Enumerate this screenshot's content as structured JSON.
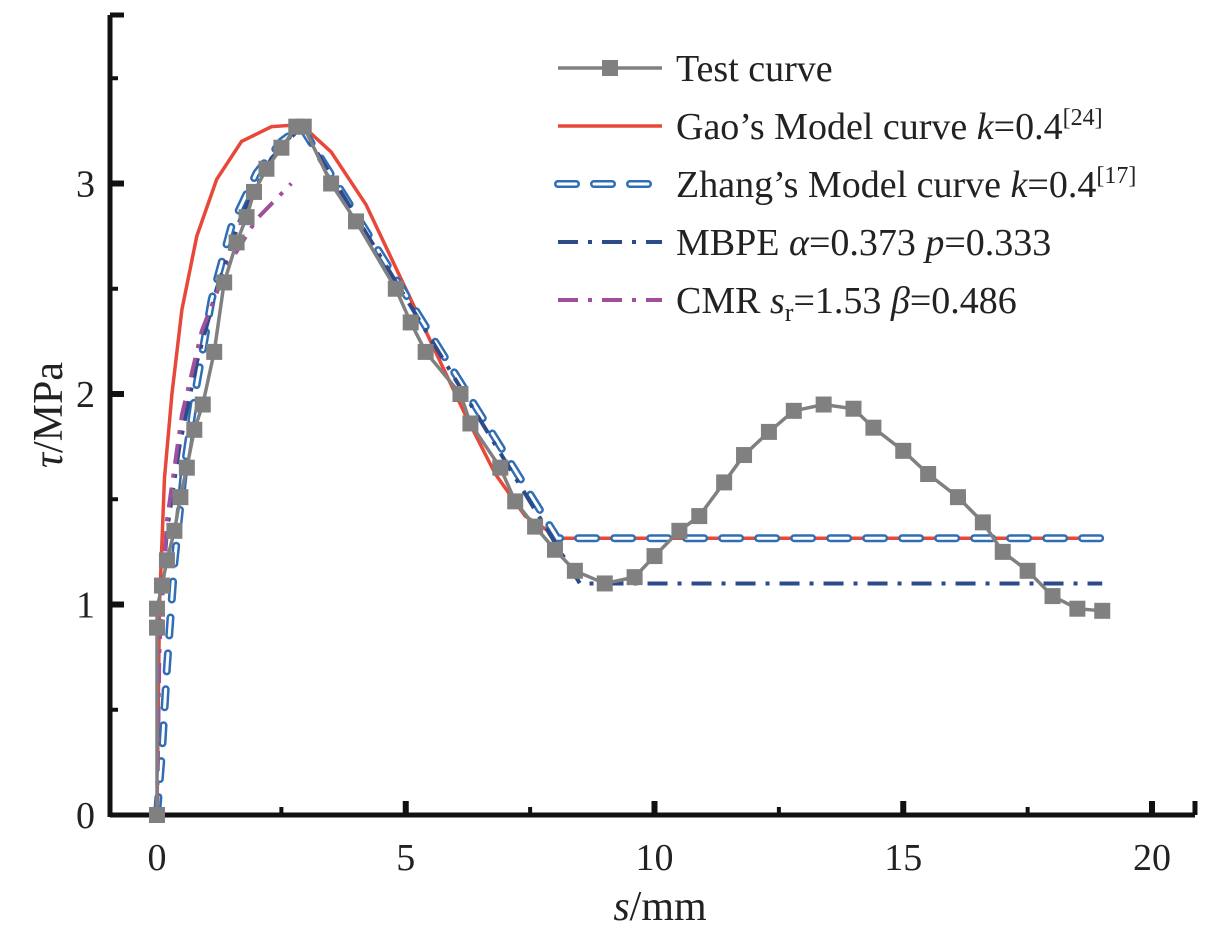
{
  "chart_data": {
    "type": "line",
    "xlabel": {
      "var": "s",
      "unit": "/mm"
    },
    "ylabel": {
      "var": "τ",
      "unit": "/MPa"
    },
    "xlim": [
      -0.95,
      20.9
    ],
    "ylim": [
      0,
      3.8
    ],
    "xticks": [
      "0",
      "5",
      "10",
      "15",
      "20"
    ],
    "xtick_values": [
      0,
      5,
      10,
      15,
      20
    ],
    "yticks": [
      "0",
      "1",
      "2",
      "3"
    ],
    "ytick_values": [
      0,
      1,
      2,
      3
    ],
    "grid": false,
    "legend_position": "top-right",
    "series": [
      {
        "name": "Test curve",
        "legend": [
          {
            "t": "Test curve"
          }
        ],
        "color": "#808080",
        "style": "line-square",
        "x": [
          0,
          0,
          0,
          0.1,
          0.2,
          0.35,
          0.47,
          0.6,
          0.75,
          0.92,
          1.15,
          1.35,
          1.6,
          1.8,
          1.95,
          2.2,
          2.5,
          2.8,
          2.95,
          3.5,
          4.0,
          4.8,
          5.1,
          5.4,
          6.1,
          6.3,
          6.9,
          7.2,
          7.6,
          8.0,
          8.4,
          9.0,
          9.6,
          10.0,
          10.5,
          10.9,
          11.4,
          11.8,
          12.3,
          12.8,
          13.4,
          14.0,
          14.4,
          15.0,
          15.5,
          16.1,
          16.6,
          17.0,
          17.5,
          18.0,
          18.5,
          19.0
        ],
        "y": [
          0,
          0.89,
          0.98,
          1.09,
          1.21,
          1.35,
          1.51,
          1.65,
          1.83,
          1.95,
          2.2,
          2.53,
          2.72,
          2.84,
          2.96,
          3.07,
          3.17,
          3.27,
          3.27,
          3.0,
          2.82,
          2.5,
          2.34,
          2.2,
          2.0,
          1.86,
          1.65,
          1.49,
          1.37,
          1.26,
          1.16,
          1.1,
          1.13,
          1.23,
          1.35,
          1.42,
          1.58,
          1.71,
          1.82,
          1.92,
          1.95,
          1.93,
          1.84,
          1.73,
          1.62,
          1.51,
          1.39,
          1.25,
          1.16,
          1.04,
          0.98,
          0.97
        ]
      },
      {
        "name": "Gao's Model curve k=0.4[24]",
        "legend": [
          {
            "t": "Gao’s Model curve "
          },
          {
            "t": "k",
            "i": true
          },
          {
            "t": "=0.4"
          },
          {
            "t": "[24]",
            "sup": true
          }
        ],
        "color": "#e8483a",
        "style": "solid",
        "x": [
          0,
          0.05,
          0.15,
          0.3,
          0.5,
          0.8,
          1.2,
          1.7,
          2.3,
          2.9,
          3.5,
          4.2,
          5.0,
          5.6,
          6.2,
          6.8,
          7.4,
          8.1,
          19
        ],
        "y": [
          0,
          1.0,
          1.6,
          2.0,
          2.4,
          2.75,
          3.02,
          3.2,
          3.27,
          3.28,
          3.15,
          2.9,
          2.5,
          2.2,
          1.9,
          1.62,
          1.42,
          1.315,
          1.315
        ]
      },
      {
        "name": "Zhang's Model curve k=0.4[17]",
        "legend": [
          {
            "t": "Zhang’s Model curve "
          },
          {
            "t": "k",
            "i": true
          },
          {
            "t": "=0.4"
          },
          {
            "t": "[17]",
            "sup": true
          }
        ],
        "color": "#2f6db5",
        "style": "hollow-dash",
        "x": [
          0,
          0.1,
          0.2,
          0.35,
          0.55,
          0.8,
          1.1,
          1.5,
          2.0,
          2.5,
          2.9,
          8.05,
          19
        ],
        "y": [
          0,
          0.3,
          0.7,
          1.2,
          1.65,
          2.05,
          2.45,
          2.8,
          3.05,
          3.2,
          3.27,
          1.315,
          1.315
        ]
      },
      {
        "name": "MBPE α=0.373 p=0.333",
        "legend": [
          {
            "t": "MBPE "
          },
          {
            "t": "α",
            "i": true
          },
          {
            "t": "=0.373 "
          },
          {
            "t": "p",
            "i": true
          },
          {
            "t": "=0.333"
          }
        ],
        "color": "#2d4a8a",
        "style": "dashdot",
        "x": [
          0,
          0.05,
          0.2,
          0.45,
          0.8,
          1.2,
          1.7,
          2.3,
          2.9,
          8.5,
          19
        ],
        "y": [
          0,
          0.9,
          1.35,
          1.75,
          2.15,
          2.5,
          2.85,
          3.12,
          3.27,
          1.1,
          1.1
        ]
      },
      {
        "name": "CMR sr=1.53 β=0.486",
        "legend": [
          {
            "t": "CMR "
          },
          {
            "t": "s",
            "i": true
          },
          {
            "t": "r",
            "sub": true
          },
          {
            "t": "=1.53 "
          },
          {
            "t": "β",
            "i": true
          },
          {
            "t": "=0.486"
          }
        ],
        "color": "#a0509a",
        "style": "dashdot",
        "x": [
          0,
          0.05,
          0.2,
          0.5,
          0.9,
          1.4,
          2.0,
          2.7
        ],
        "y": [
          0,
          0.8,
          1.4,
          1.9,
          2.3,
          2.6,
          2.83,
          3.0
        ]
      }
    ]
  }
}
